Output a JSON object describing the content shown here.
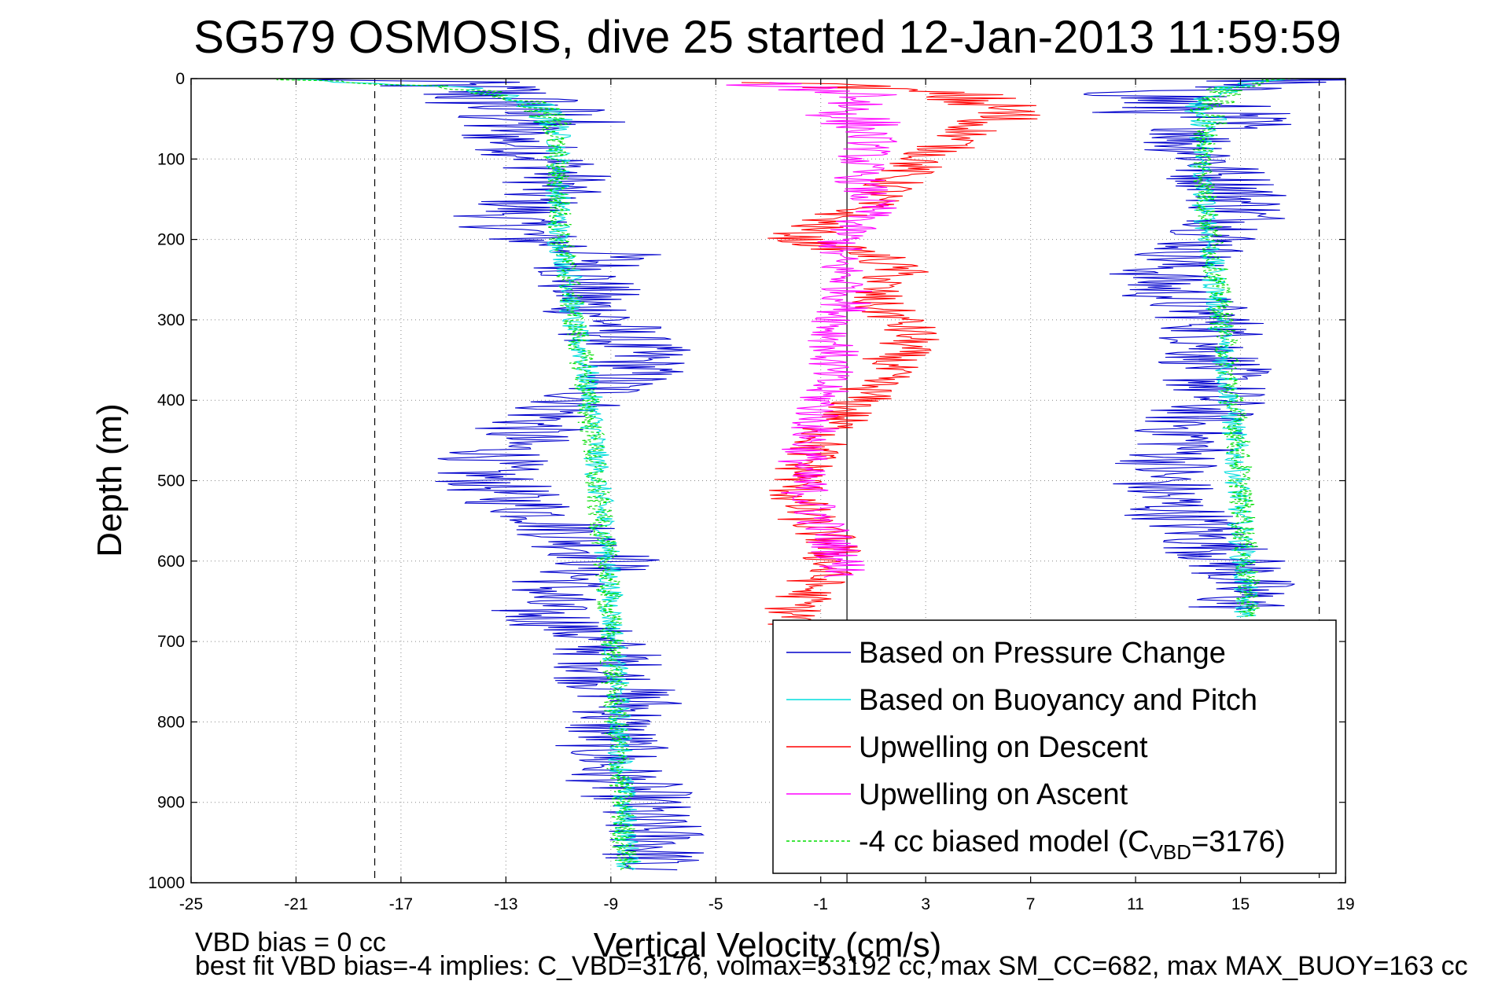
{
  "chart_data": {
    "type": "line",
    "title": "SG579 OSMOSIS, dive 25 started 12-Jan-2013 11:59:59",
    "xlabel": "Vertical Velocity (cm/s)",
    "ylabel": "Depth (m)",
    "xlim": [
      -25,
      19
    ],
    "ylim": [
      1000,
      0
    ],
    "y_reversed": true,
    "grid": true,
    "legend_position": "bottom-right",
    "x_ticks": [
      "-25",
      "-21",
      "-17",
      "-13",
      "-9",
      "-5",
      "-1",
      "3",
      "7",
      "11",
      "15",
      "19"
    ],
    "y_ticks": [
      "0",
      "100",
      "200",
      "300",
      "400",
      "500",
      "600",
      "700",
      "800",
      "900",
      "1000"
    ],
    "reference_lines": {
      "zero_velocity_x": 0,
      "dashed_x": [
        -18,
        18
      ]
    },
    "series": [
      {
        "name": "Based on Pressure Change",
        "color": "#0000cc",
        "style": "solid",
        "noise": 2.2,
        "segments": [
          {
            "depth": [
              0,
              5,
              15,
              30,
              50,
              70,
              90,
              110,
              130,
              150,
              175,
              200,
              220,
              240,
              260,
              280,
              300,
              320,
              340,
              360,
              380,
              400,
              430,
              460,
              490,
              520,
              550,
              580,
              600,
              630,
              660,
              690,
              720,
              750,
              780,
              800,
              830,
              860,
              890,
              920,
              950,
              970,
              985
            ],
            "x": [
              -20,
              -16,
              -14,
              -13,
              -12,
              -13,
              -12,
              -11,
              -11,
              -12,
              -13,
              -12,
              -9,
              -10,
              -10,
              -10,
              -9,
              -9,
              -8,
              -8,
              -9,
              -10,
              -12,
              -13,
              -14,
              -13,
              -11,
              -10,
              -9,
              -11,
              -12,
              -10,
              -9,
              -9,
              -8,
              -9,
              -9,
              -9,
              -8,
              -8,
              -7,
              -7.5,
              -8
            ]
          },
          {
            "depth": [
              0,
              10,
              25,
              40,
              60,
              80,
              100,
              120,
              140,
              160,
              180,
              200,
              220,
              240,
              260,
              280,
              300,
              330,
              360,
              400,
              430,
              460,
              490,
              520,
              550,
              580,
              610,
              640,
              660
            ],
            "x": [
              17,
              13,
              12,
              13,
              14,
              13,
              14,
              14,
              15,
              15,
              15,
              14,
              13,
              12,
              12,
              13,
              14,
              14,
              14,
              14,
              13,
              13,
              12,
              12,
              13,
              14,
              15,
              15,
              15
            ]
          }
        ]
      },
      {
        "name": "Based on Buoyancy and Pitch",
        "color": "#00dddd",
        "style": "solid",
        "noise": 0.5,
        "segments": [
          {
            "depth": [
              0,
              10,
              30,
              60,
              100,
              150,
              200,
              250,
              300,
              350,
              400,
              450,
              500,
              550,
              600,
              650,
              700,
              750,
              800,
              850,
              900,
              950,
              985
            ],
            "x": [
              -22,
              -15,
              -12,
              -11,
              -11,
              -11,
              -11,
              -10.5,
              -10.5,
              -10,
              -9.8,
              -9.6,
              -9.5,
              -9.3,
              -9.1,
              -9,
              -8.9,
              -8.8,
              -8.7,
              -8.6,
              -8.5,
              -8.4,
              -8.3
            ]
          },
          {
            "depth": [
              0,
              10,
              30,
              60,
              100,
              150,
              200,
              250,
              300,
              350,
              400,
              450,
              500,
              550,
              600,
              650,
              670
            ],
            "x": [
              17,
              14.5,
              13.8,
              13.6,
              13.5,
              13.6,
              13.8,
              14,
              14.2,
              14.4,
              14.6,
              14.8,
              14.9,
              15,
              15.1,
              15.2,
              15.2
            ]
          }
        ]
      },
      {
        "name": "Upwelling on Descent",
        "color": "#ff0000",
        "style": "solid",
        "noise": 1.2,
        "segments": [
          {
            "depth": [
              5,
              20,
              40,
              60,
              80,
              100,
              120,
              140,
              160,
              180,
              200,
              220,
              240,
              260,
              280,
              300,
              320,
              340,
              360,
              380,
              400,
              430,
              460,
              490,
              520,
              550,
              580,
              610,
              640,
              660,
              680
            ],
            "x": [
              -2,
              4,
              6,
              5,
              4,
              3,
              2,
              1.5,
              0.5,
              -1,
              -2,
              1,
              2,
              1,
              1,
              2,
              2.5,
              2,
              1.5,
              1,
              0.5,
              -0.5,
              -1.2,
              -1.7,
              -2,
              -1.5,
              -0.5,
              -0.8,
              -1.5,
              -2,
              -2
            ]
          }
        ]
      },
      {
        "name": "Upwelling on Ascent",
        "color": "#ff00ff",
        "style": "solid",
        "noise": 1.0,
        "segments": [
          {
            "depth": [
              5,
              20,
              40,
              60,
              80,
              100,
              130,
              160,
              190,
              220,
              250,
              280,
              310,
              340,
              370,
              400,
              430,
              460,
              490,
              520,
              550,
              580,
              600,
              620
            ],
            "x": [
              -4,
              1,
              0,
              0.5,
              1,
              0.5,
              0.5,
              1,
              0,
              -0.5,
              0,
              0,
              -0.5,
              -0.5,
              -0.8,
              -1,
              -1.2,
              -1.5,
              -1.8,
              -1.5,
              -1,
              -0.5,
              -0.2,
              0
            ]
          }
        ]
      },
      {
        "name": "-4 cc biased model (C",
        "subscript": "VBD",
        "suffix": "=3176)",
        "color": "#00dd00",
        "style": "dashed",
        "noise": 0.5,
        "segments": [
          {
            "depth": [
              0,
              10,
              30,
              60,
              100,
              150,
              200,
              250,
              300,
              350,
              400,
              450,
              500,
              550,
              600,
              650,
              700,
              750,
              800,
              850,
              900,
              950,
              985
            ],
            "x": [
              -22,
              -15,
              -12,
              -11.2,
              -11.1,
              -11,
              -10.9,
              -10.6,
              -10.4,
              -10.1,
              -9.9,
              -9.7,
              -9.6,
              -9.4,
              -9.2,
              -9.1,
              -9,
              -8.9,
              -8.8,
              -8.7,
              -8.6,
              -8.5,
              -8.4
            ]
          },
          {
            "depth": [
              0,
              10,
              30,
              60,
              100,
              150,
              200,
              250,
              300,
              350,
              400,
              450,
              500,
              550,
              600,
              650,
              670
            ],
            "x": [
              17,
              14.6,
              13.9,
              13.7,
              13.6,
              13.7,
              13.9,
              14.1,
              14.3,
              14.5,
              14.7,
              14.9,
              15,
              15.1,
              15.2,
              15.3,
              15.3
            ]
          }
        ]
      }
    ],
    "annotations": [
      "VBD bias = 0 cc",
      "best fit VBD bias=-4 implies: C_VBD=3176, volmax=53192 cc, max SM_CC=682, max MAX_BUOY=163 cc"
    ]
  }
}
